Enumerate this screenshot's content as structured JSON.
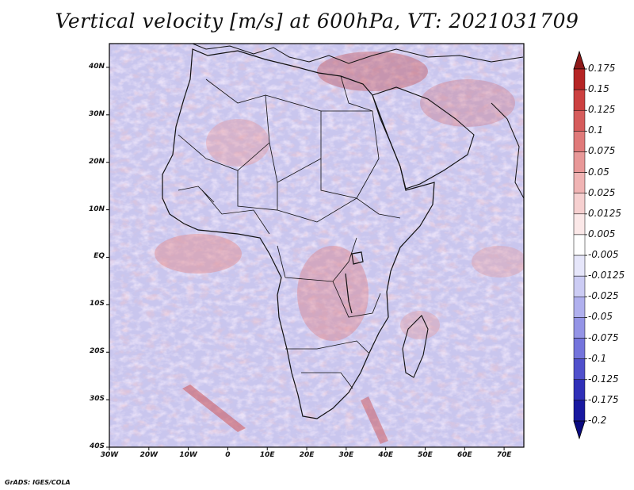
{
  "title": "Vertical velocity [m/s] at 600hPa, VT: 2021031709",
  "credit": "GrADS: IGES/COLA",
  "map": {
    "lon_range": [
      -30,
      75
    ],
    "lat_range": [
      -40,
      45
    ],
    "field": "vertical velocity, 600hPa",
    "y_ticks": [
      "40N",
      "30N",
      "20N",
      "10N",
      "EQ",
      "10S",
      "20S",
      "30S",
      "40S"
    ],
    "x_ticks": [
      "30W",
      "20W",
      "10W",
      "0",
      "10E",
      "20E",
      "30E",
      "40E",
      "50E",
      "60E",
      "70E"
    ]
  },
  "colorbar": {
    "labels": [
      "0.175",
      "0.15",
      "0.125",
      "0.1",
      "0.075",
      "0.05",
      "0.025",
      "0.0125",
      "0.005",
      "-0.005",
      "-0.0125",
      "-0.025",
      "-0.05",
      "-0.075",
      "-0.1",
      "-0.125",
      "-0.175",
      "-0.2"
    ],
    "colors": [
      "#8e1a1a",
      "#b52424",
      "#cc4040",
      "#d65c5c",
      "#e07a7a",
      "#e89898",
      "#f0b4b4",
      "#f6d0d0",
      "#fbe8e8",
      "#ffffff",
      "#e6e6fa",
      "#ccccf4",
      "#b0b0ee",
      "#9494e6",
      "#7474dc",
      "#5050cc",
      "#3030b8",
      "#1818a0",
      "#0a0a80"
    ]
  }
}
